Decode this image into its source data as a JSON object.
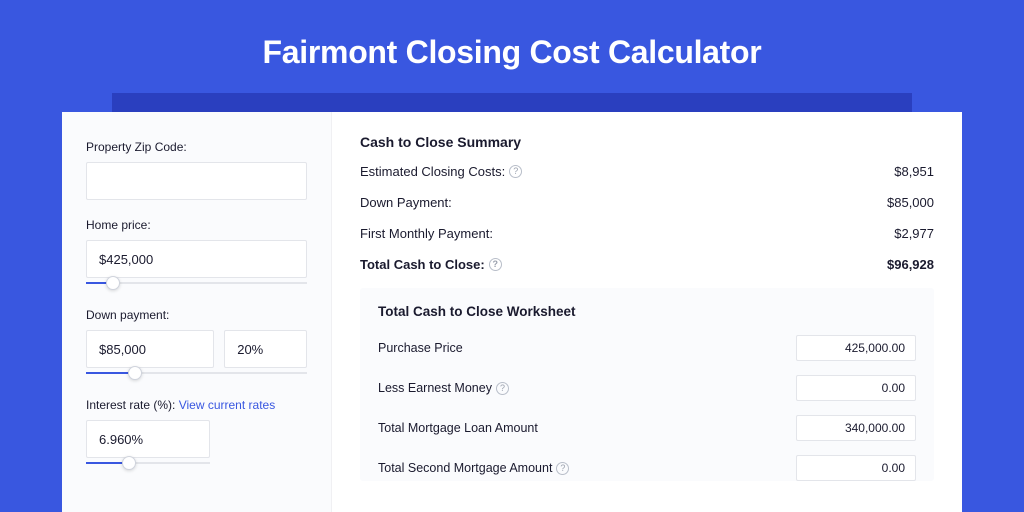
{
  "colors": {
    "page_bg": "#3957e0",
    "shadow_bar": "#2a3fbf",
    "panel_bg": "#ffffff",
    "sidebar_bg": "#fafbfd",
    "border": "#e3e5ea",
    "accent": "#3957e0",
    "text": "#1a1a2e",
    "help_border": "#b8bec9",
    "help_text": "#9aa0ad"
  },
  "title": "Fairmont Closing Cost Calculator",
  "sidebar": {
    "zip": {
      "label": "Property Zip Code:",
      "value": ""
    },
    "home_price": {
      "label": "Home price:",
      "value": "$425,000",
      "slider_pct": 12
    },
    "down_payment": {
      "label": "Down payment:",
      "value": "$85,000",
      "pct_value": "20%",
      "slider_pct": 22
    },
    "interest": {
      "label": "Interest rate (%):",
      "link_text": "View current rates",
      "value": "6.960%",
      "slider_pct": 35
    }
  },
  "summary": {
    "title": "Cash to Close Summary",
    "rows": [
      {
        "label": "Estimated Closing Costs:",
        "help": true,
        "value": "$8,951",
        "bold": false
      },
      {
        "label": "Down Payment:",
        "help": false,
        "value": "$85,000",
        "bold": false
      },
      {
        "label": "First Monthly Payment:",
        "help": false,
        "value": "$2,977",
        "bold": false
      },
      {
        "label": "Total Cash to Close:",
        "help": true,
        "value": "$96,928",
        "bold": true
      }
    ]
  },
  "worksheet": {
    "title": "Total Cash to Close Worksheet",
    "rows": [
      {
        "label": "Purchase Price",
        "help": false,
        "value": "425,000.00"
      },
      {
        "label": "Less Earnest Money",
        "help": true,
        "value": "0.00"
      },
      {
        "label": "Total Mortgage Loan Amount",
        "help": false,
        "value": "340,000.00"
      },
      {
        "label": "Total Second Mortgage Amount",
        "help": true,
        "value": "0.00"
      }
    ]
  }
}
